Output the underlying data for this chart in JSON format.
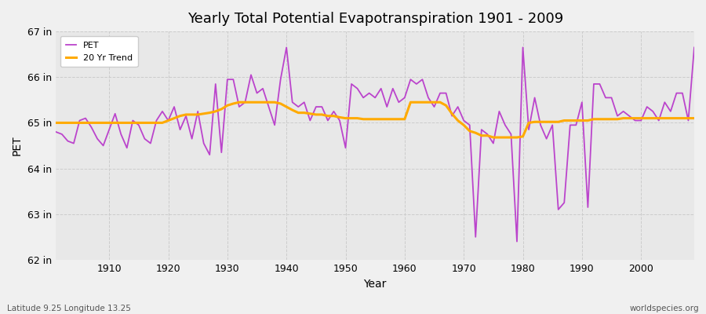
{
  "title": "Yearly Total Potential Evapotranspiration 1901 - 2009",
  "xlabel": "Year",
  "ylabel": "PET",
  "subtitle": "Latitude 9.25 Longitude 13.25",
  "watermark": "worldspecies.org",
  "bg_color": "#f0f0f0",
  "plot_bg_color": "#e8e8e8",
  "pet_color": "#bb44cc",
  "trend_color": "#ffaa00",
  "ylim": [
    62,
    67
  ],
  "yticks": [
    62,
    63,
    64,
    65,
    66,
    67
  ],
  "ytick_labels": [
    "62 in",
    "63 in",
    "64 in",
    "65 in",
    "66 in",
    "67 in"
  ],
  "years": [
    1901,
    1902,
    1903,
    1904,
    1905,
    1906,
    1907,
    1908,
    1909,
    1910,
    1911,
    1912,
    1913,
    1914,
    1915,
    1916,
    1917,
    1918,
    1919,
    1920,
    1921,
    1922,
    1923,
    1924,
    1925,
    1926,
    1927,
    1928,
    1929,
    1930,
    1931,
    1932,
    1933,
    1934,
    1935,
    1936,
    1937,
    1938,
    1939,
    1940,
    1941,
    1942,
    1943,
    1944,
    1945,
    1946,
    1947,
    1948,
    1949,
    1950,
    1951,
    1952,
    1953,
    1954,
    1955,
    1956,
    1957,
    1958,
    1959,
    1960,
    1961,
    1962,
    1963,
    1964,
    1965,
    1966,
    1967,
    1968,
    1969,
    1970,
    1971,
    1972,
    1973,
    1974,
    1975,
    1976,
    1977,
    1978,
    1979,
    1980,
    1981,
    1982,
    1983,
    1984,
    1985,
    1986,
    1987,
    1988,
    1989,
    1990,
    1991,
    1992,
    1993,
    1994,
    1995,
    1996,
    1997,
    1998,
    1999,
    2000,
    2001,
    2002,
    2003,
    2004,
    2005,
    2006,
    2007,
    2008,
    2009
  ],
  "pet_values": [
    64.8,
    64.75,
    64.6,
    64.55,
    65.05,
    65.1,
    64.9,
    64.65,
    64.5,
    64.85,
    65.2,
    64.75,
    64.45,
    65.05,
    64.95,
    64.65,
    64.55,
    65.05,
    65.25,
    65.05,
    65.35,
    64.85,
    65.15,
    64.65,
    65.25,
    64.55,
    64.3,
    65.85,
    64.35,
    65.95,
    65.95,
    65.35,
    65.45,
    66.05,
    65.65,
    65.75,
    65.35,
    64.95,
    65.95,
    66.65,
    65.45,
    65.35,
    65.45,
    65.05,
    65.35,
    65.35,
    65.05,
    65.25,
    65.05,
    64.45,
    65.85,
    65.75,
    65.55,
    65.65,
    65.55,
    65.75,
    65.35,
    65.75,
    65.45,
    65.55,
    65.95,
    65.85,
    65.95,
    65.55,
    65.35,
    65.65,
    65.65,
    65.15,
    65.35,
    65.05,
    64.95,
    62.5,
    64.85,
    64.75,
    64.55,
    65.25,
    64.95,
    64.75,
    62.4,
    66.65,
    64.85,
    65.55,
    64.95,
    64.65,
    64.95,
    63.1,
    63.25,
    64.95,
    64.95,
    65.45,
    63.15,
    65.85,
    65.85,
    65.55,
    65.55,
    65.15,
    65.25,
    65.15,
    65.05,
    65.05,
    65.35,
    65.25,
    65.05,
    65.45,
    65.25,
    65.65,
    65.65,
    65.05,
    66.65
  ],
  "trend_values": [
    65.0,
    65.0,
    65.0,
    65.0,
    65.0,
    65.0,
    65.0,
    65.0,
    65.0,
    65.0,
    65.0,
    65.0,
    65.0,
    65.0,
    65.0,
    65.0,
    65.0,
    65.0,
    65.0,
    65.05,
    65.1,
    65.15,
    65.18,
    65.18,
    65.18,
    65.2,
    65.22,
    65.25,
    65.3,
    65.38,
    65.42,
    65.45,
    65.45,
    65.45,
    65.45,
    65.45,
    65.45,
    65.45,
    65.42,
    65.35,
    65.28,
    65.22,
    65.22,
    65.2,
    65.18,
    65.18,
    65.15,
    65.15,
    65.12,
    65.1,
    65.1,
    65.1,
    65.08,
    65.08,
    65.08,
    65.08,
    65.08,
    65.08,
    65.08,
    65.08,
    65.45,
    65.45,
    65.45,
    65.45,
    65.45,
    65.45,
    65.38,
    65.2,
    65.05,
    64.95,
    64.82,
    64.78,
    64.72,
    64.72,
    64.68,
    64.68,
    64.68,
    64.68,
    64.68,
    64.7,
    65.0,
    65.02,
    65.02,
    65.02,
    65.02,
    65.02,
    65.05,
    65.05,
    65.05,
    65.05,
    65.05,
    65.08,
    65.08,
    65.08,
    65.08,
    65.08,
    65.1,
    65.1,
    65.1,
    65.1,
    65.1,
    65.1,
    65.1,
    65.1,
    65.1,
    65.1,
    65.1,
    65.1,
    65.1
  ]
}
